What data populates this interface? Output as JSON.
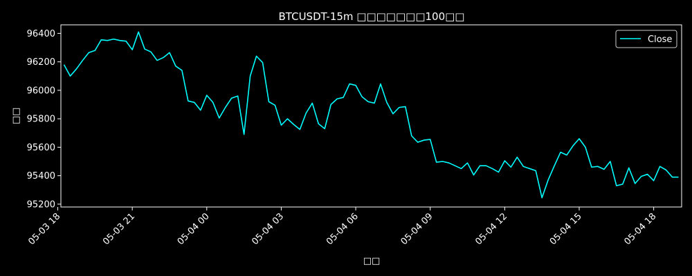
{
  "chart_data": {
    "type": "line",
    "title": "BTCUSDT-15m □□□□□□□100□□",
    "xlabel": "□□",
    "ylabel": "□□",
    "ylim": [
      95180,
      96460
    ],
    "yticks": [
      95200,
      95400,
      95600,
      95800,
      96000,
      96200,
      96400
    ],
    "xticks": [
      {
        "label": "05-03 18",
        "index": 0
      },
      {
        "label": "05-03 21",
        "index": 12
      },
      {
        "label": "05-04 00",
        "index": 24
      },
      {
        "label": "05-04 03",
        "index": 36
      },
      {
        "label": "05-04 06",
        "index": 48
      },
      {
        "label": "05-04 09",
        "index": 60
      },
      {
        "label": "05-04 12",
        "index": 72
      },
      {
        "label": "05-04 15",
        "index": 84
      },
      {
        "label": "05-04 18",
        "index": 96
      }
    ],
    "x_index_start": 1,
    "legend": {
      "position": "top-right"
    },
    "series": [
      {
        "name": "Close",
        "color": "#00ffff",
        "values": [
          96180,
          96100,
          96150,
          96210,
          96265,
          96280,
          96355,
          96350,
          96360,
          96350,
          96345,
          96285,
          96410,
          96290,
          96270,
          96210,
          96230,
          96265,
          96170,
          96140,
          95925,
          95915,
          95860,
          95965,
          95915,
          95805,
          95880,
          95945,
          95960,
          95690,
          96100,
          96240,
          96195,
          95920,
          95895,
          95755,
          95800,
          95760,
          95725,
          95840,
          95910,
          95765,
          95730,
          95900,
          95940,
          95950,
          96045,
          96035,
          95955,
          95920,
          95910,
          96045,
          95915,
          95835,
          95880,
          95885,
          95680,
          95635,
          95650,
          95655,
          95495,
          95500,
          95490,
          95470,
          95450,
          95490,
          95405,
          95470,
          95470,
          95450,
          95425,
          95505,
          95460,
          95530,
          95465,
          95450,
          95435,
          95245,
          95370,
          95470,
          95565,
          95545,
          95610,
          95660,
          95600,
          95460,
          95465,
          95445,
          95500,
          95330,
          95340,
          95455,
          95345,
          95395,
          95410,
          95365,
          95465,
          95440,
          95390,
          95390
        ]
      }
    ]
  }
}
